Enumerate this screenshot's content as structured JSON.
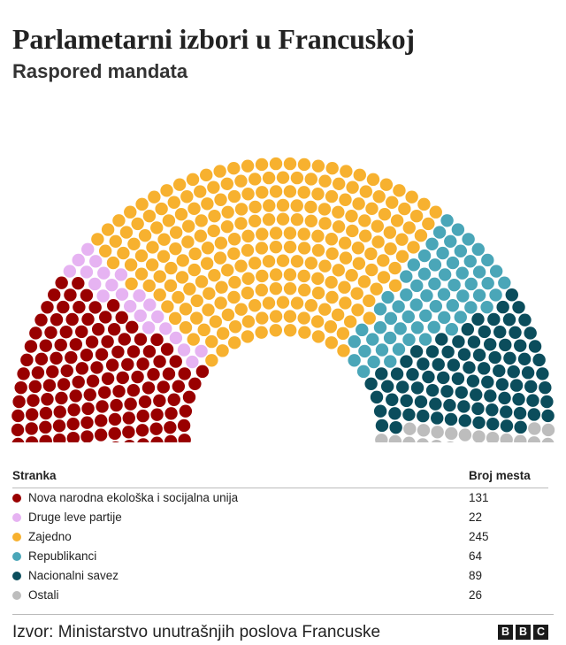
{
  "header": {
    "title": "Parlametarni izbori u Francuskoj",
    "subtitle": "Raspored mandata"
  },
  "chart_data": {
    "type": "hemicycle",
    "total_seats": 577,
    "table": {
      "col_party": "Stranka",
      "col_seats": "Broj mesta"
    },
    "series": [
      {
        "name": "Nova narodna ekološka i socijalna unija",
        "value": 131,
        "color": "#990000"
      },
      {
        "name": "Druge leve partije",
        "value": 22,
        "color": "#e6b3f2"
      },
      {
        "name": "Zajedno",
        "value": 245,
        "color": "#f7b12f"
      },
      {
        "name": "Republikanci",
        "value": 64,
        "color": "#4aa6b8"
      },
      {
        "name": "Nacionalni savez",
        "value": 89,
        "color": "#0b4d5c"
      },
      {
        "name": "Ostali",
        "value": 26,
        "color": "#bdbdbd"
      }
    ]
  },
  "footer": {
    "source": "Izvor: Ministarstvo unutrašnjih poslova Francuske",
    "logo_letters": [
      "B",
      "B",
      "C"
    ]
  }
}
